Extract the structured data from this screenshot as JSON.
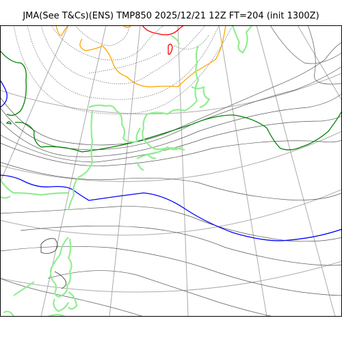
{
  "title": "JMA(See T&Cs)(ENS) TMP850 2025/12/21 12Z FT=204 (init 1300Z)",
  "map": {
    "product": "TMP850",
    "model": "JMA ENS",
    "valid": "2025/12/21 12Z",
    "forecast_hour": "FT=204",
    "init": "init 1300Z",
    "colors": {
      "coastline": "#90ee90",
      "graticule": "#aaaaaa",
      "isotherm": "#555555",
      "isotherm_dotted": "#666666",
      "line_0C": "#0000ff",
      "line_minus6C": "#008000",
      "line_minus18C": "#ffa500",
      "line_minus30C": "#ff0000"
    }
  }
}
